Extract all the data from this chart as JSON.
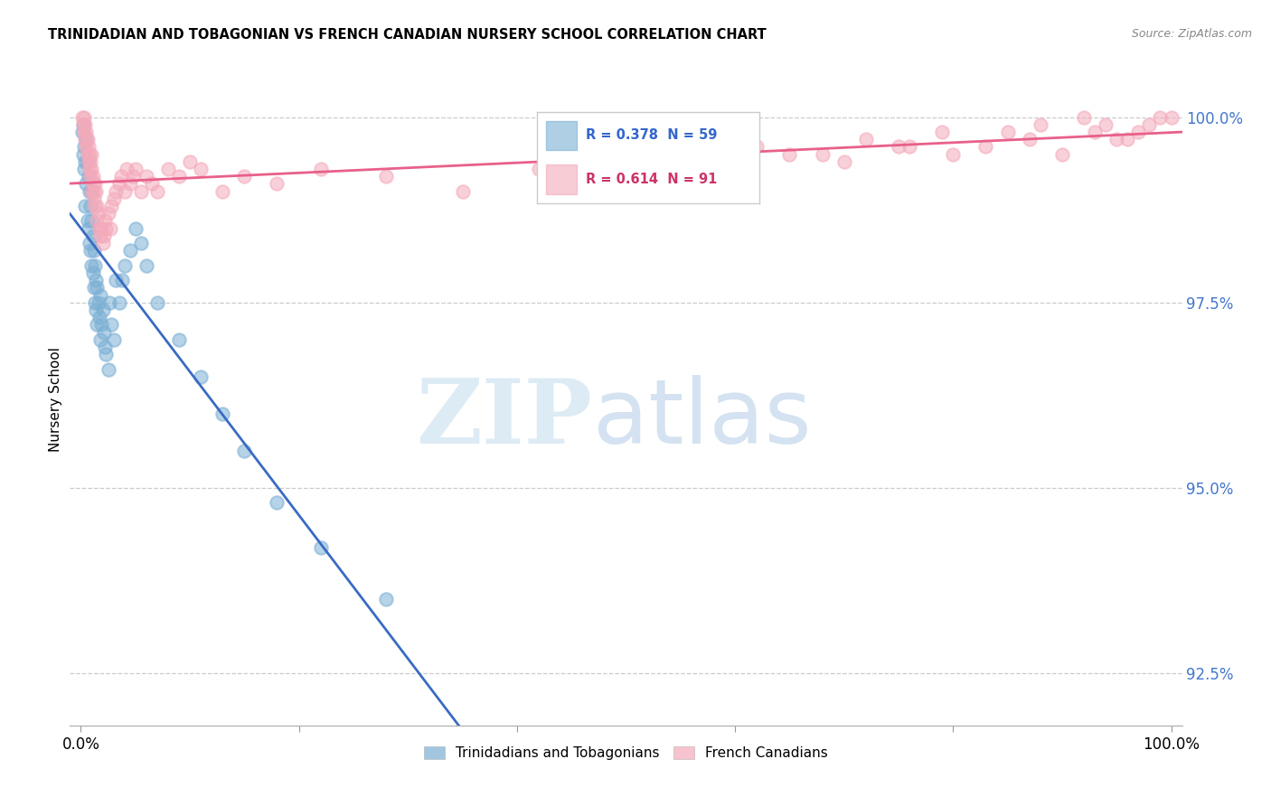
{
  "title": "TRINIDADIAN AND TOBAGONIAN VS FRENCH CANADIAN NURSERY SCHOOL CORRELATION CHART",
  "source": "Source: ZipAtlas.com",
  "ylabel": "Nursery School",
  "ytick_labels": [
    "92.5%",
    "95.0%",
    "97.5%",
    "100.0%"
  ],
  "ytick_values": [
    92.5,
    95.0,
    97.5,
    100.0
  ],
  "ymin": 91.8,
  "ymax": 100.6,
  "xmin": -0.01,
  "xmax": 1.01,
  "legend_blue_r": "0.378",
  "legend_blue_n": "59",
  "legend_pink_r": "0.614",
  "legend_pink_n": "91",
  "blue_color": "#7BAFD4",
  "pink_color": "#F4AABA",
  "blue_line_color": "#3A6BC4",
  "pink_line_color": "#E8608A",
  "blue_scatter_x": [
    0.001,
    0.002,
    0.002,
    0.003,
    0.003,
    0.004,
    0.004,
    0.005,
    0.005,
    0.006,
    0.006,
    0.007,
    0.007,
    0.008,
    0.008,
    0.009,
    0.009,
    0.01,
    0.01,
    0.01,
    0.011,
    0.011,
    0.012,
    0.012,
    0.013,
    0.013,
    0.014,
    0.014,
    0.015,
    0.015,
    0.016,
    0.017,
    0.018,
    0.018,
    0.019,
    0.02,
    0.021,
    0.022,
    0.023,
    0.025,
    0.026,
    0.028,
    0.03,
    0.032,
    0.035,
    0.038,
    0.04,
    0.045,
    0.05,
    0.055,
    0.06,
    0.07,
    0.09,
    0.11,
    0.13,
    0.15,
    0.18,
    0.22,
    0.28
  ],
  "blue_scatter_y": [
    99.8,
    99.5,
    99.9,
    99.6,
    99.3,
    99.4,
    98.8,
    99.7,
    99.1,
    99.4,
    98.6,
    99.2,
    98.5,
    99.0,
    98.3,
    98.8,
    98.2,
    99.0,
    98.6,
    98.0,
    98.4,
    97.9,
    98.2,
    97.7,
    98.0,
    97.5,
    97.8,
    97.4,
    97.7,
    97.2,
    97.5,
    97.3,
    97.6,
    97.0,
    97.2,
    97.4,
    97.1,
    96.9,
    96.8,
    96.6,
    97.5,
    97.2,
    97.0,
    97.8,
    97.5,
    97.8,
    98.0,
    98.2,
    98.5,
    98.3,
    98.0,
    97.5,
    97.0,
    96.5,
    96.0,
    95.5,
    94.8,
    94.2,
    93.5
  ],
  "pink_scatter_x": [
    0.001,
    0.002,
    0.003,
    0.003,
    0.004,
    0.004,
    0.005,
    0.005,
    0.006,
    0.006,
    0.007,
    0.007,
    0.008,
    0.008,
    0.009,
    0.009,
    0.01,
    0.01,
    0.01,
    0.011,
    0.011,
    0.012,
    0.012,
    0.013,
    0.013,
    0.014,
    0.015,
    0.015,
    0.016,
    0.017,
    0.018,
    0.019,
    0.02,
    0.021,
    0.022,
    0.023,
    0.025,
    0.027,
    0.028,
    0.03,
    0.032,
    0.035,
    0.037,
    0.04,
    0.042,
    0.045,
    0.048,
    0.05,
    0.055,
    0.06,
    0.065,
    0.07,
    0.08,
    0.09,
    0.1,
    0.11,
    0.13,
    0.15,
    0.18,
    0.22,
    0.28,
    0.35,
    0.42,
    0.5,
    0.55,
    0.6,
    0.65,
    0.7,
    0.75,
    0.8,
    0.83,
    0.87,
    0.9,
    0.93,
    0.96,
    0.97,
    0.98,
    0.99,
    1.0,
    0.52,
    0.58,
    0.62,
    0.68,
    0.72,
    0.76,
    0.79,
    0.85,
    0.88,
    0.92,
    0.94,
    0.95
  ],
  "pink_scatter_y": [
    100.0,
    99.9,
    99.8,
    100.0,
    99.7,
    99.9,
    99.8,
    99.6,
    99.7,
    99.5,
    99.6,
    99.4,
    99.5,
    99.3,
    99.4,
    99.2,
    99.3,
    99.5,
    99.0,
    99.2,
    99.1,
    99.0,
    98.9,
    99.1,
    98.8,
    99.0,
    98.8,
    98.6,
    98.7,
    98.5,
    98.4,
    98.5,
    98.3,
    98.4,
    98.6,
    98.5,
    98.7,
    98.5,
    98.8,
    98.9,
    99.0,
    99.1,
    99.2,
    99.0,
    99.3,
    99.1,
    99.2,
    99.3,
    99.0,
    99.2,
    99.1,
    99.0,
    99.3,
    99.2,
    99.4,
    99.3,
    99.0,
    99.2,
    99.1,
    99.3,
    99.2,
    99.0,
    99.3,
    99.2,
    99.5,
    99.3,
    99.5,
    99.4,
    99.6,
    99.5,
    99.6,
    99.7,
    99.5,
    99.8,
    99.7,
    99.8,
    99.9,
    100.0,
    100.0,
    99.4,
    99.3,
    99.6,
    99.5,
    99.7,
    99.6,
    99.8,
    99.8,
    99.9,
    100.0,
    99.9,
    99.7
  ]
}
